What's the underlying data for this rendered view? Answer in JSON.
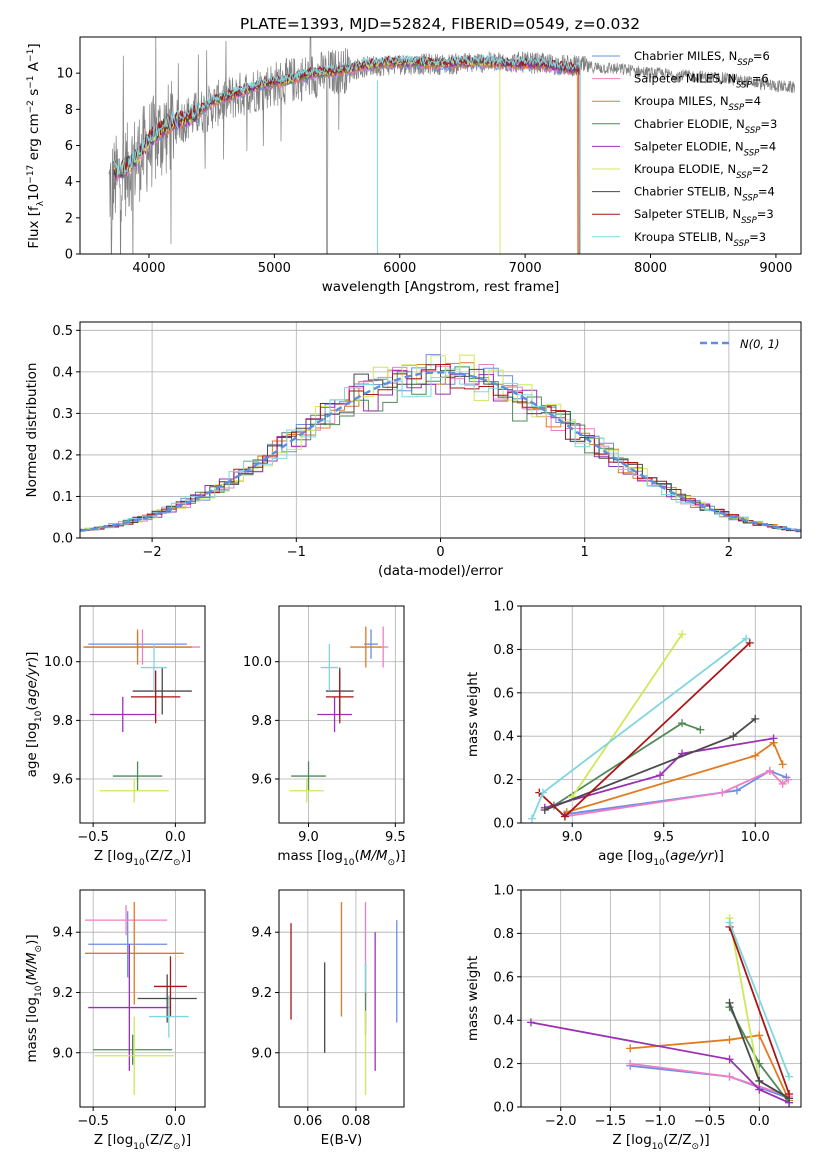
{
  "figure": {
    "title": "PLATE=1393, MJD=52824, FIBERID=0549, z=0.032"
  },
  "colors": {
    "Chabrier MILES": "#6a8ee6",
    "Salpeter MILES": "#f07fc2",
    "Kroupa MILES": "#e07b20",
    "Chabrier ELODIE": "#4f8a58",
    "Salpeter ELODIE": "#9b30b8",
    "Kroupa ELODIE": "#cfe85a",
    "Chabrier STELIB": "#4a4a4a",
    "Salpeter STELIB": "#aa1515",
    "Kroupa STELIB": "#7fd6e0",
    "data": "#808080",
    "gauss": "#5b8fe0"
  },
  "chart_data": [
    {
      "id": "spectrum",
      "type": "line",
      "xlabel": "wavelength [Angstrom, rest frame]",
      "ylabel": "Flux [f_λ 10^-17 erg cm^-2 s^-1 A^-1]",
      "xlim": [
        3450,
        9200
      ],
      "ylim": [
        0,
        12
      ],
      "xticks": [
        4000,
        5000,
        6000,
        7000,
        8000,
        9000
      ],
      "yticks": [
        0,
        2,
        4,
        6,
        8,
        10
      ],
      "grid": false,
      "legend_position": "right",
      "legend": [
        {
          "base": "Chabrier MILES, N",
          "nssp": "6"
        },
        {
          "base": "Salpeter MILES, N",
          "nssp": "6"
        },
        {
          "base": "Kroupa MILES, N",
          "nssp": "4"
        },
        {
          "base": "Chabrier ELODIE, N",
          "nssp": "3"
        },
        {
          "base": "Salpeter ELODIE, N",
          "nssp": "4"
        },
        {
          "base": "Kroupa ELODIE, N",
          "nssp": "2"
        },
        {
          "base": "Chabrier STELIB, N",
          "nssp": "4"
        },
        {
          "base": "Salpeter STELIB, N",
          "nssp": "3"
        },
        {
          "base": "Kroupa STELIB, N",
          "nssp": "3"
        }
      ],
      "model_envelope": {
        "x": [
          3700,
          3800,
          3900,
          4000,
          4100,
          4200,
          4300,
          4400,
          4500,
          4700,
          4900,
          5100,
          5300,
          5500,
          5700,
          5900,
          6100,
          6300,
          6500,
          6700,
          6900,
          7100,
          7300,
          7400
        ],
        "y": [
          4.5,
          4.7,
          5.3,
          6.3,
          6.9,
          7.3,
          7.5,
          7.9,
          8.4,
          8.9,
          9.4,
          9.6,
          10.0,
          10.1,
          10.4,
          10.6,
          10.6,
          10.5,
          10.6,
          10.6,
          10.5,
          10.5,
          10.3,
          10.2
        ]
      },
      "data_envelope": {
        "x": [
          3650,
          3800,
          4000,
          4200,
          4400,
          4600,
          4800,
          5000,
          5200,
          5400,
          5600,
          5800,
          6000,
          6200,
          6400,
          6600,
          6800,
          7000,
          7200,
          7400,
          7600,
          7800,
          8000,
          8200,
          8400,
          8600,
          8800,
          9000,
          9150
        ],
        "y": [
          3.5,
          4.5,
          6.0,
          7.2,
          7.8,
          8.5,
          9.0,
          9.4,
          9.7,
          10.0,
          10.2,
          10.4,
          10.5,
          10.5,
          10.5,
          10.6,
          10.6,
          10.6,
          10.5,
          10.4,
          10.3,
          10.2,
          10.0,
          9.9,
          9.8,
          9.7,
          9.5,
          9.3,
          9.2
        ]
      }
    },
    {
      "id": "residuals",
      "type": "line",
      "xlabel": "(data-model)/error",
      "ylabel": "Normed distribution",
      "xlim": [
        -2.5,
        2.5
      ],
      "ylim": [
        0,
        0.52
      ],
      "xticks": [
        -2,
        -1,
        0,
        1,
        2
      ],
      "yticks": [
        0.0,
        0.1,
        0.2,
        0.3,
        0.4,
        0.5
      ],
      "grid": true,
      "legend_position": "top-right",
      "gauss_label": "N(0, 1)"
    },
    {
      "id": "age-vs-Z",
      "type": "scatter",
      "xlabel": "Z [log10(Z/Z⊙)]",
      "ylabel": "age  [log10(age/yr)]",
      "xlim": [
        -0.58,
        0.18
      ],
      "ylim": [
        9.45,
        10.19
      ],
      "xticks": [
        -0.5,
        0.0
      ],
      "yticks": [
        9.6,
        9.8,
        10.0
      ],
      "grid": true,
      "points": [
        {
          "model": "Chabrier MILES",
          "x": -0.23,
          "xerr": 0.3,
          "y": 10.06,
          "yerr": 0.04
        },
        {
          "model": "Salpeter MILES",
          "x": -0.2,
          "xerr": 0.35,
          "y": 10.05,
          "yerr": 0.06
        },
        {
          "model": "Kroupa MILES",
          "x": -0.23,
          "xerr": 0.33,
          "y": 10.05,
          "yerr": 0.06
        },
        {
          "model": "Chabrier ELODIE",
          "x": -0.23,
          "xerr": 0.15,
          "y": 9.61,
          "yerr": 0.05
        },
        {
          "model": "Salpeter ELODIE",
          "x": -0.32,
          "xerr": 0.2,
          "y": 9.82,
          "yerr": 0.06
        },
        {
          "model": "Kroupa ELODIE",
          "x": -0.25,
          "xerr": 0.21,
          "y": 9.56,
          "yerr": 0.04
        },
        {
          "model": "Chabrier STELIB",
          "x": -0.08,
          "xerr": 0.18,
          "y": 9.9,
          "yerr": 0.08
        },
        {
          "model": "Salpeter STELIB",
          "x": -0.12,
          "xerr": 0.15,
          "y": 9.88,
          "yerr": 0.09
        },
        {
          "model": "Kroupa STELIB",
          "x": -0.13,
          "xerr": 0.08,
          "y": 9.98,
          "yerr": 0.08
        }
      ]
    },
    {
      "id": "age-vs-mass",
      "type": "scatter",
      "xlabel": "mass [log10(M/M⊙)]",
      "ylabel": "",
      "xlim": [
        8.83,
        9.55
      ],
      "ylim": [
        9.45,
        10.19
      ],
      "xticks": [
        9.0,
        9.5
      ],
      "yticks": [
        9.6,
        9.8,
        10.0
      ],
      "grid": true,
      "points": [
        {
          "model": "Chabrier MILES",
          "x": 9.36,
          "xerr": 0.04,
          "y": 10.06,
          "yerr": 0.05
        },
        {
          "model": "Salpeter MILES",
          "x": 9.43,
          "xerr": 0.03,
          "y": 10.05,
          "yerr": 0.07
        },
        {
          "model": "Kroupa MILES",
          "x": 9.33,
          "xerr": 0.09,
          "y": 10.05,
          "yerr": 0.07
        },
        {
          "model": "Chabrier ELODIE",
          "x": 9.0,
          "xerr": 0.1,
          "y": 9.61,
          "yerr": 0.05
        },
        {
          "model": "Salpeter ELODIE",
          "x": 9.15,
          "xerr": 0.1,
          "y": 9.82,
          "yerr": 0.06
        },
        {
          "model": "Kroupa ELODIE",
          "x": 8.99,
          "xerr": 0.1,
          "y": 9.56,
          "yerr": 0.04
        },
        {
          "model": "Chabrier STELIB",
          "x": 9.18,
          "xerr": 0.08,
          "y": 9.9,
          "yerr": 0.08
        },
        {
          "model": "Salpeter STELIB",
          "x": 9.18,
          "xerr": 0.08,
          "y": 9.88,
          "yerr": 0.09
        },
        {
          "model": "Kroupa STELIB",
          "x": 9.12,
          "xerr": 0.05,
          "y": 9.98,
          "yerr": 0.08
        }
      ]
    },
    {
      "id": "weight-vs-age",
      "type": "line",
      "xlabel": "age  [log10(age/yr)]",
      "ylabel": "mass weight",
      "xlim": [
        8.72,
        10.25
      ],
      "ylim": [
        0,
        1.0
      ],
      "xticks": [
        9.0,
        9.5,
        10.0
      ],
      "yticks": [
        0.0,
        0.2,
        0.4,
        0.6,
        0.8,
        1.0
      ],
      "grid": true,
      "series": [
        {
          "model": "Chabrier MILES",
          "x": [
            8.96,
            9.9,
            10.08,
            10.17
          ],
          "y": [
            0.04,
            0.15,
            0.24,
            0.21
          ]
        },
        {
          "model": "Salpeter MILES",
          "x": [
            8.96,
            9.82,
            10.08,
            10.15,
            10.18
          ],
          "y": [
            0.03,
            0.14,
            0.24,
            0.18,
            0.2
          ]
        },
        {
          "model": "Kroupa MILES",
          "x": [
            8.97,
            10.0,
            10.1,
            10.15
          ],
          "y": [
            0.05,
            0.31,
            0.37,
            0.27
          ]
        },
        {
          "model": "Chabrier ELODIE",
          "x": [
            8.9,
            9.6,
            9.7
          ],
          "y": [
            0.08,
            0.46,
            0.43
          ]
        },
        {
          "model": "Salpeter ELODIE",
          "x": [
            8.85,
            9.48,
            9.6,
            10.1
          ],
          "y": [
            0.07,
            0.22,
            0.32,
            0.39
          ]
        },
        {
          "model": "Kroupa ELODIE",
          "x": [
            9.0,
            9.6
          ],
          "y": [
            0.12,
            0.87
          ]
        },
        {
          "model": "Chabrier STELIB",
          "x": [
            8.85,
            9.88,
            10.0
          ],
          "y": [
            0.06,
            0.4,
            0.48
          ]
        },
        {
          "model": "Salpeter STELIB",
          "x": [
            8.82,
            8.96,
            9.97
          ],
          "y": [
            0.14,
            0.03,
            0.83
          ]
        },
        {
          "model": "Kroupa STELIB",
          "x": [
            8.78,
            8.84,
            9.95
          ],
          "y": [
            0.02,
            0.14,
            0.85
          ]
        }
      ]
    },
    {
      "id": "mass-vs-Z",
      "type": "scatter",
      "xlabel": "Z [log10(Z/Z⊙)]",
      "ylabel": "mass [log10(M/M⊙)]",
      "xlim": [
        -0.58,
        0.18
      ],
      "ylim": [
        8.82,
        9.54
      ],
      "xticks": [
        -0.5,
        0.0
      ],
      "yticks": [
        9.0,
        9.2,
        9.4
      ],
      "grid": true,
      "points": [
        {
          "model": "Chabrier MILES",
          "x": -0.29,
          "xerr": 0.24,
          "y": 9.36,
          "yerr": 0.11
        },
        {
          "model": "Salpeter MILES",
          "x": -0.3,
          "xerr": 0.25,
          "y": 9.44,
          "yerr": 0.05
        },
        {
          "model": "Kroupa MILES",
          "x": -0.25,
          "xerr": 0.3,
          "y": 9.33,
          "yerr": 0.17
        },
        {
          "model": "Chabrier ELODIE",
          "x": -0.26,
          "xerr": 0.24,
          "y": 9.01,
          "yerr": 0.05
        },
        {
          "model": "Salpeter ELODIE",
          "x": -0.28,
          "xerr": 0.25,
          "y": 9.15,
          "yerr": 0.21
        },
        {
          "model": "Kroupa ELODIE",
          "x": -0.25,
          "xerr": 0.24,
          "y": 8.99,
          "yerr": 0.13
        },
        {
          "model": "Chabrier STELIB",
          "x": -0.05,
          "xerr": 0.18,
          "y": 9.18,
          "yerr": 0.08
        },
        {
          "model": "Salpeter STELIB",
          "x": -0.03,
          "xerr": 0.1,
          "y": 9.22,
          "yerr": 0.1
        },
        {
          "model": "Kroupa STELIB",
          "x": -0.04,
          "xerr": 0.12,
          "y": 9.12,
          "yerr": 0.07
        }
      ]
    },
    {
      "id": "mass-vs-EBV",
      "type": "scatter",
      "xlabel": "E(B-V)",
      "ylabel": "",
      "xlim": [
        0.048,
        0.1
      ],
      "ylim": [
        8.82,
        9.54
      ],
      "xticks": [
        0.06,
        0.08
      ],
      "yticks": [
        9.0,
        9.2,
        9.4
      ],
      "grid": true,
      "points": [
        {
          "model": "Chabrier MILES",
          "x": 0.097,
          "y": 9.27,
          "yerr": 0.17
        },
        {
          "model": "Salpeter MILES",
          "x": 0.084,
          "y": 9.3,
          "yerr": 0.2
        },
        {
          "model": "Kroupa MILES",
          "x": 0.074,
          "y": 9.31,
          "yerr": 0.19
        },
        {
          "model": "Chabrier ELODIE",
          "x": 0.084,
          "y": 9.18,
          "yerr": 0.12
        },
        {
          "model": "Salpeter ELODIE",
          "x": 0.088,
          "y": 9.17,
          "yerr": 0.23
        },
        {
          "model": "Kroupa ELODIE",
          "x": 0.084,
          "y": 9.0,
          "yerr": 0.14
        },
        {
          "model": "Chabrier STELIB",
          "x": 0.067,
          "y": 9.15,
          "yerr": 0.15
        },
        {
          "model": "Salpeter STELIB",
          "x": 0.053,
          "y": 9.27,
          "yerr": 0.16
        },
        {
          "model": "Kroupa STELIB",
          "x": 0.084,
          "y": 9.25,
          "yerr": 0.05
        }
      ]
    },
    {
      "id": "weight-vs-Z",
      "type": "line",
      "xlabel": "Z [log10(Z/Z⊙)]",
      "ylabel": "mass weight",
      "xlim": [
        -2.4,
        0.42
      ],
      "ylim": [
        0,
        1.0
      ],
      "xticks": [
        -2.0,
        -1.5,
        -1.0,
        -0.5,
        0.0
      ],
      "yticks": [
        0.0,
        0.2,
        0.4,
        0.6,
        0.8,
        1.0
      ],
      "grid": true,
      "series": [
        {
          "model": "Chabrier MILES",
          "x": [
            -1.3,
            -0.3,
            0.3
          ],
          "y": [
            0.19,
            0.14,
            0.04
          ]
        },
        {
          "model": "Salpeter MILES",
          "x": [
            -1.3,
            -0.3,
            0.3
          ],
          "y": [
            0.2,
            0.14,
            0.05
          ]
        },
        {
          "model": "Kroupa MILES",
          "x": [
            -1.3,
            -0.3,
            0.0,
            0.3
          ],
          "y": [
            0.27,
            0.31,
            0.33,
            0.03
          ]
        },
        {
          "model": "Chabrier ELODIE",
          "x": [
            -0.3,
            0.0,
            0.3
          ],
          "y": [
            0.46,
            0.2,
            0.02
          ]
        },
        {
          "model": "Salpeter ELODIE",
          "x": [
            -2.3,
            -0.3,
            0.0,
            0.3
          ],
          "y": [
            0.39,
            0.22,
            0.08,
            0.02
          ]
        },
        {
          "model": "Kroupa ELODIE",
          "x": [
            -0.3,
            0.0
          ],
          "y": [
            0.87,
            0.12
          ]
        },
        {
          "model": "Chabrier STELIB",
          "x": [
            -0.3,
            0.0,
            0.3
          ],
          "y": [
            0.48,
            0.12,
            0.04
          ]
        },
        {
          "model": "Salpeter STELIB",
          "x": [
            -0.3,
            0.3
          ],
          "y": [
            0.83,
            0.06
          ]
        },
        {
          "model": "Kroupa STELIB",
          "x": [
            -0.3,
            0.3
          ],
          "y": [
            0.85,
            0.14
          ]
        }
      ]
    }
  ]
}
